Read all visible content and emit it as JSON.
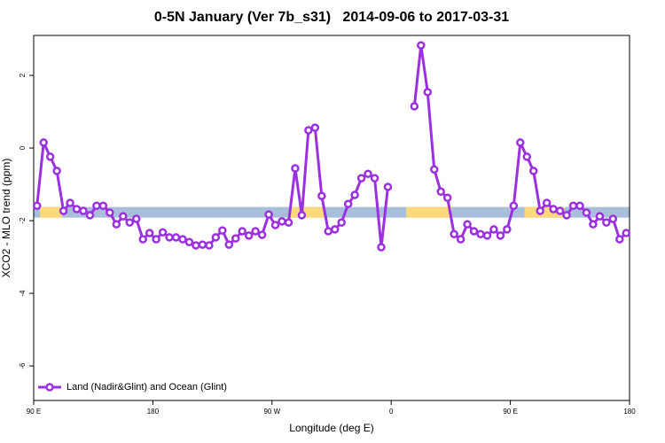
{
  "chart_data": {
    "type": "line",
    "title": "0-5N January (Ver 7b_s31)   2014-09-06 to 2017-03-31",
    "x_label": "Longitude (deg E)",
    "y_label": "XCO2 - MLO trend (ppm)",
    "xlim": [
      90,
      540
    ],
    "xticks": [
      {
        "value": 90,
        "label": "90 E"
      },
      180,
      {
        "value": 270,
        "label": "90 W"
      },
      {
        "value": 360,
        "label": "0"
      },
      {
        "value": 450,
        "label": "90 E"
      },
      {
        "value": 540,
        "label": "180"
      }
    ],
    "ylim": [
      -6.95,
      3.1
    ],
    "yticks": [
      -6,
      -4,
      -2,
      0,
      2
    ],
    "band": {
      "value": -1.77,
      "ocean_color": "#a9bedb",
      "land_color": "#fcd97a",
      "land": [
        [
          94.7,
          111.5
        ],
        [
          284,
          309.6
        ],
        [
          371.4,
          405.6
        ],
        [
          460.7,
          491
        ]
      ]
    },
    "legend": "bottom-left",
    "x": [
      92.5,
      97.5,
      102.5,
      107.5,
      112.5,
      117.5,
      122.5,
      127.5,
      132.5,
      137.5,
      142.5,
      147.5,
      152.5,
      157.5,
      162.5,
      167.5,
      172.5,
      177.5,
      182.5,
      187.5,
      192.5,
      197.5,
      202.5,
      207.5,
      212.5,
      217.5,
      222.5,
      227.5,
      232.5,
      237.5,
      242.5,
      247.5,
      252.5,
      257.5,
      262.5,
      267.5,
      272.5,
      277.5,
      282.5,
      287.5,
      292.5,
      297.5,
      302.5,
      307.5,
      312.5,
      317.5,
      322.5,
      327.5,
      332.5,
      337.5,
      342.5,
      347.5,
      352.5,
      357.5,
      362.5,
      367.5,
      372.5,
      377.5,
      382.5,
      387.5,
      392.5,
      397.5,
      402.5,
      407.5,
      412.5,
      417.5,
      422.5,
      427.5,
      432.5,
      437.5,
      442.5,
      447.5,
      452.5,
      457.5,
      462.5,
      467.5,
      472.5,
      477.5,
      482.5,
      487.5,
      492.5,
      497.5,
      502.5,
      507.5,
      512.5,
      517.5,
      522.5,
      527.5,
      532.5,
      537.5
    ],
    "series": [
      {
        "name": "Land (Nadir&Glint) and Ocean (Glint)",
        "color": "#9b30e0",
        "values": [
          -1.59,
          0.15,
          -0.24,
          -0.63,
          -1.73,
          -1.51,
          -1.68,
          -1.73,
          -1.85,
          -1.59,
          -1.59,
          -1.78,
          -2.1,
          -1.88,
          -2.05,
          -1.95,
          -2.51,
          -2.34,
          -2.51,
          -2.32,
          -2.46,
          -2.46,
          -2.51,
          -2.59,
          -2.68,
          -2.66,
          -2.68,
          -2.46,
          -2.27,
          -2.66,
          -2.49,
          -2.29,
          -2.41,
          -2.29,
          -2.39,
          -1.83,
          -2.12,
          -2.02,
          -2.05,
          -0.56,
          -1.85,
          0.49,
          0.56,
          -1.32,
          -2.29,
          -2.24,
          -2.05,
          -1.54,
          -1.29,
          -0.83,
          -0.71,
          -0.83,
          -2.73,
          -1.07,
          null,
          null,
          null,
          1.15,
          2.83,
          1.54,
          -0.59,
          -1.2,
          -1.37,
          -2.37,
          -2.51,
          -2.1,
          -2.29,
          -2.37,
          -2.41,
          -2.24,
          -2.41,
          -2.24,
          -1.59,
          0.15,
          -0.24,
          -0.63,
          -1.73,
          -1.51,
          -1.68,
          -1.73,
          -1.85,
          -1.59,
          -1.59,
          -1.78,
          -2.1,
          -1.88,
          -2.05,
          -1.95,
          -2.51,
          -2.34
        ]
      }
    ]
  }
}
